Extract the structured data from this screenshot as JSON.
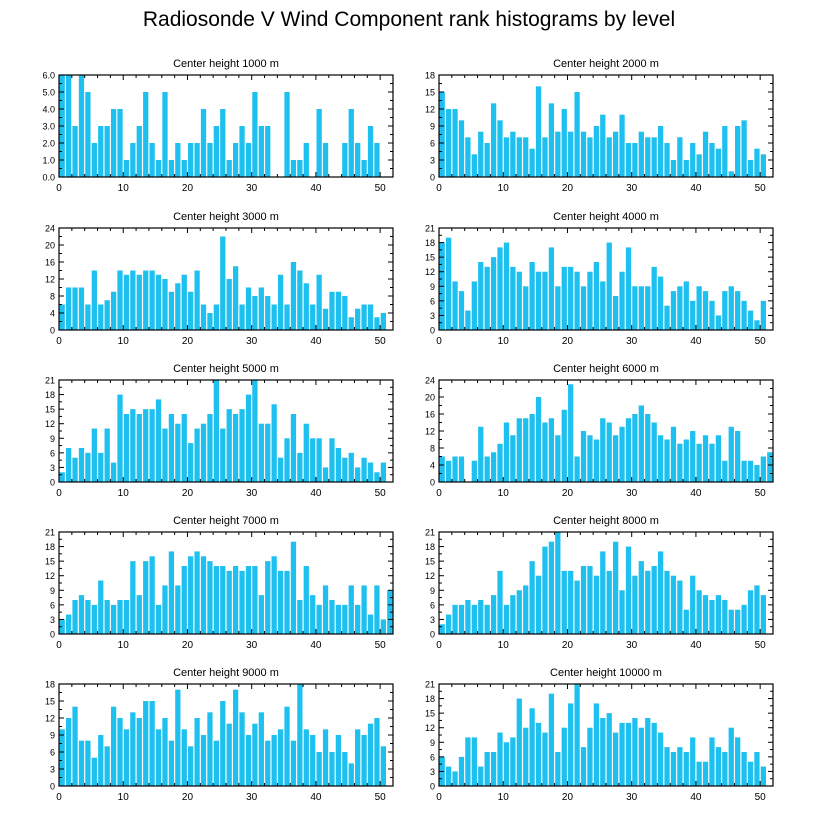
{
  "title": "Radiosonde V Wind Component rank histograms by level",
  "colors": {
    "bar": "#1ec0f0",
    "axis": "#000000"
  },
  "chart_data": [
    {
      "type": "bar",
      "title": "Center height 1000 m",
      "xlim": [
        0,
        52
      ],
      "ylim": [
        0,
        6
      ],
      "xticks": [
        0,
        10,
        20,
        30,
        40,
        50
      ],
      "yticks": [
        0,
        1,
        2,
        3,
        4,
        5,
        6
      ],
      "ytick_labels": [
        "0.0",
        "1.0",
        "2.0",
        "3.0",
        "4.0",
        "5.0",
        "6.0"
      ],
      "values": [
        6,
        6,
        3,
        6,
        5,
        2,
        3,
        3,
        4,
        4,
        1,
        2,
        3,
        5,
        2,
        1,
        5,
        1,
        2,
        1,
        2,
        2,
        4,
        2,
        3,
        4,
        1,
        2,
        3,
        2,
        5,
        3,
        3,
        0,
        0,
        5,
        1,
        1,
        2,
        0,
        4,
        2,
        0,
        0,
        2,
        4,
        2,
        1,
        3,
        2,
        0
      ]
    },
    {
      "type": "bar",
      "title": "Center height 2000 m",
      "xlim": [
        0,
        52
      ],
      "ylim": [
        0,
        18
      ],
      "xticks": [
        0,
        10,
        20,
        30,
        40,
        50
      ],
      "yticks": [
        0,
        3,
        6,
        9,
        12,
        15,
        18
      ],
      "ytick_labels": [
        "0",
        "3",
        "6",
        "9",
        "12",
        "15",
        "18"
      ],
      "values": [
        15,
        12,
        12,
        10,
        7,
        4,
        8,
        6,
        13,
        10,
        7,
        8,
        7,
        7,
        5,
        16,
        7,
        13,
        8,
        12,
        8,
        15,
        8,
        7,
        9,
        11,
        7,
        8,
        11,
        6,
        6,
        8,
        7,
        7,
        9,
        6,
        3,
        7,
        3,
        6,
        4,
        8,
        6,
        5,
        9,
        1,
        9,
        10,
        3,
        5,
        4
      ]
    },
    {
      "type": "bar",
      "title": "Center height 3000 m",
      "xlim": [
        0,
        52
      ],
      "ylim": [
        0,
        24
      ],
      "xticks": [
        0,
        10,
        20,
        30,
        40,
        50
      ],
      "yticks": [
        0,
        4,
        8,
        12,
        16,
        20,
        24
      ],
      "ytick_labels": [
        "0",
        "4",
        "8",
        "12",
        "16",
        "20",
        "24"
      ],
      "values": [
        6,
        10,
        10,
        10,
        6,
        14,
        6,
        7,
        9,
        14,
        13,
        14,
        13,
        14,
        14,
        13,
        12,
        9,
        11,
        13,
        9,
        14,
        6,
        4,
        6,
        22,
        12,
        15,
        6,
        10,
        8,
        10,
        8,
        6,
        13,
        6,
        16,
        14,
        11,
        6,
        13,
        5,
        9,
        9,
        8,
        3,
        5,
        6,
        6,
        3,
        4
      ]
    },
    {
      "type": "bar",
      "title": "Center height 4000 m",
      "xlim": [
        0,
        52
      ],
      "ylim": [
        0,
        21
      ],
      "xticks": [
        0,
        10,
        20,
        30,
        40,
        50
      ],
      "yticks": [
        0,
        3,
        6,
        9,
        12,
        15,
        18,
        21
      ],
      "ytick_labels": [
        "0",
        "3",
        "6",
        "9",
        "12",
        "15",
        "18",
        "21"
      ],
      "values": [
        18,
        19,
        10,
        8,
        4,
        10,
        14,
        13,
        15,
        17,
        18,
        13,
        12,
        9,
        14,
        12,
        12,
        17,
        9,
        13,
        13,
        12,
        9,
        12,
        14,
        10,
        18,
        7,
        12,
        17,
        9,
        9,
        9,
        13,
        11,
        5,
        8,
        9,
        10,
        6,
        9,
        8,
        6,
        3,
        8,
        9,
        8,
        6,
        4,
        2,
        6
      ]
    },
    {
      "type": "bar",
      "title": "Center height 5000 m",
      "xlim": [
        0,
        52
      ],
      "ylim": [
        0,
        21
      ],
      "xticks": [
        0,
        10,
        20,
        30,
        40,
        50
      ],
      "yticks": [
        0,
        3,
        6,
        9,
        12,
        15,
        18,
        21
      ],
      "ytick_labels": [
        "0",
        "3",
        "6",
        "9",
        "12",
        "15",
        "18",
        "21"
      ],
      "values": [
        2,
        7,
        5,
        7,
        6,
        11,
        6,
        11,
        4,
        18,
        14,
        15,
        14,
        15,
        15,
        17,
        11,
        14,
        12,
        14,
        8,
        11,
        12,
        14,
        21,
        11,
        15,
        14,
        15,
        18,
        21,
        12,
        12,
        16,
        5,
        9,
        14,
        6,
        12,
        9,
        9,
        3,
        9,
        7,
        5,
        6,
        3,
        5,
        4,
        2,
        4
      ]
    },
    {
      "type": "bar",
      "title": "Center height 6000 m",
      "xlim": [
        0,
        52
      ],
      "ylim": [
        0,
        24
      ],
      "xticks": [
        0,
        10,
        20,
        30,
        40,
        50
      ],
      "yticks": [
        0,
        4,
        8,
        12,
        16,
        20,
        24
      ],
      "ytick_labels": [
        "0",
        "4",
        "8",
        "12",
        "16",
        "20",
        "24"
      ],
      "values": [
        6,
        5,
        6,
        6,
        0,
        5,
        13,
        6,
        7,
        9,
        14,
        11,
        15,
        15,
        16,
        20,
        14,
        15,
        11,
        17,
        23,
        6,
        12,
        11,
        10,
        15,
        14,
        11,
        13,
        15,
        16,
        18,
        16,
        14,
        11,
        10,
        13,
        9,
        10,
        12,
        9,
        11,
        9,
        11,
        5,
        13,
        12,
        5,
        5,
        4,
        6,
        7
      ]
    },
    {
      "type": "bar",
      "title": "Center height 7000 m",
      "xlim": [
        0,
        52
      ],
      "ylim": [
        0,
        21
      ],
      "xticks": [
        0,
        10,
        20,
        30,
        40,
        50
      ],
      "yticks": [
        0,
        3,
        6,
        9,
        12,
        15,
        18,
        21
      ],
      "ytick_labels": [
        "0",
        "3",
        "6",
        "9",
        "12",
        "15",
        "18",
        "21"
      ],
      "values": [
        3,
        4,
        7,
        8,
        7,
        6,
        11,
        7,
        6,
        7,
        7,
        15,
        8,
        15,
        16,
        6,
        10,
        17,
        10,
        14,
        16,
        17,
        16,
        15,
        14,
        14,
        13,
        14,
        13,
        14,
        14,
        8,
        15,
        16,
        13,
        13,
        19,
        7,
        14,
        8,
        6,
        10,
        7,
        6,
        6,
        10,
        6,
        10,
        4,
        10,
        3,
        9
      ]
    },
    {
      "type": "bar",
      "title": "Center height 8000 m",
      "xlim": [
        0,
        52
      ],
      "ylim": [
        0,
        21
      ],
      "xticks": [
        0,
        10,
        20,
        30,
        40,
        50
      ],
      "yticks": [
        0,
        3,
        6,
        9,
        12,
        15,
        18,
        21
      ],
      "ytick_labels": [
        "0",
        "3",
        "6",
        "9",
        "12",
        "15",
        "18",
        "21"
      ],
      "values": [
        2,
        4,
        6,
        6,
        7,
        6,
        7,
        6,
        8,
        13,
        6,
        8,
        9,
        10,
        15,
        12,
        18,
        19,
        21,
        13,
        13,
        11,
        14,
        14,
        12,
        17,
        13,
        19,
        9,
        18,
        12,
        15,
        13,
        14,
        17,
        13,
        12,
        11,
        5,
        12,
        9,
        8,
        7,
        8,
        7,
        5,
        5,
        6,
        9,
        10,
        8
      ]
    },
    {
      "type": "bar",
      "title": "Center height 9000 m",
      "xlim": [
        0,
        52
      ],
      "ylim": [
        0,
        18
      ],
      "xticks": [
        0,
        10,
        20,
        30,
        40,
        50
      ],
      "yticks": [
        0,
        3,
        6,
        9,
        12,
        15,
        18
      ],
      "ytick_labels": [
        "0",
        "3",
        "6",
        "9",
        "12",
        "15",
        "18"
      ],
      "values": [
        10,
        12,
        14,
        8,
        8,
        5,
        9,
        7,
        14,
        12,
        10,
        13,
        12,
        15,
        15,
        10,
        12,
        8,
        17,
        10,
        7,
        12,
        9,
        13,
        8,
        15,
        11,
        17,
        13,
        9,
        11,
        13,
        8,
        9,
        10,
        14,
        8,
        18,
        10,
        9,
        6,
        10,
        6,
        9,
        6,
        4,
        10,
        9,
        11,
        12,
        7
      ]
    },
    {
      "type": "bar",
      "title": "Center height 10000 m",
      "xlim": [
        0,
        52
      ],
      "ylim": [
        0,
        21
      ],
      "xticks": [
        0,
        10,
        20,
        30,
        40,
        50
      ],
      "yticks": [
        0,
        3,
        6,
        9,
        12,
        15,
        18,
        21
      ],
      "ytick_labels": [
        "0",
        "3",
        "6",
        "9",
        "12",
        "15",
        "18",
        "21"
      ],
      "values": [
        6,
        4,
        3,
        6,
        10,
        10,
        4,
        7,
        7,
        11,
        9,
        10,
        18,
        12,
        16,
        13,
        11,
        19,
        7,
        12,
        17,
        21,
        8,
        12,
        17,
        14,
        15,
        11,
        13,
        13,
        14,
        12,
        14,
        13,
        11,
        8,
        7,
        8,
        7,
        10,
        5,
        5,
        10,
        8,
        7,
        12,
        10,
        7,
        5,
        7,
        4
      ]
    }
  ]
}
